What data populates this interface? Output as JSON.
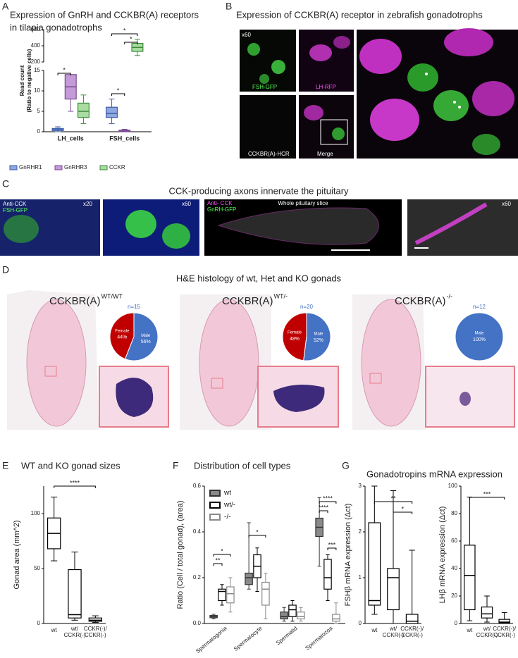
{
  "panel_labels": [
    "A",
    "B",
    "C",
    "D",
    "E",
    "F",
    "G"
  ],
  "panel_b": {
    "title": "Expression of CCKBR(A) receptor in zebrafish gonadotrophs",
    "image_labels": [
      "x60",
      "FSH-GFP",
      "LH-RFP",
      "CCKBR(A)-HCR",
      "Merge"
    ]
  },
  "panel_c": {
    "title": "CCK-producing axons innervate the pituitary",
    "image_labels": [
      "Anti-CCK",
      "FSH-GFP",
      "x20",
      "x60",
      "Anti- CCK",
      "GnRH-GFP",
      "Whole pituitary slice",
      "x60"
    ]
  },
  "panel_d": {
    "title": "H&E histology of wt, Het and KO gonads",
    "genotypes": [
      {
        "name": "CCKBR(A)",
        "superscript": "WT/WT"
      },
      {
        "name": "CCKBR(A)",
        "superscript": "WT/-"
      },
      {
        "name": "CCKBR(A)",
        "superscript": "-/-"
      }
    ]
  },
  "panel_g": {
    "title": "Gonadotropins mRNA expression"
  },
  "chart_data": [
    {
      "type": "box",
      "title": [
        "Expression of GnRH and CCKBR(A) receptors",
        "in tilapia gonadotrophs"
      ],
      "ylabel": [
        "Read count",
        "(Ratio to negative cells)"
      ],
      "categories": [
        "LH_cells",
        "FSH_cells"
      ],
      "ylim": [
        [
          0,
          15
        ],
        [
          200,
          600
        ]
      ],
      "yticks": [
        [
          0,
          5,
          10,
          15
        ],
        [
          200,
          400,
          600
        ]
      ],
      "series": [
        {
          "name": "GnRHR1",
          "color": "#3a5ba8",
          "fill": "#8fa8e0",
          "values": [
            [
              0,
              0.3,
              0.5,
              0.8,
              1.2
            ],
            [
              2,
              3.5,
              4.5,
              6,
              8
            ]
          ]
        },
        {
          "name": "GnRHR3",
          "color": "#7a4a90",
          "fill": "#c49ad8",
          "values": [
            [
              5,
              8,
              11,
              14,
              16
            ],
            [
              0,
              0,
              0.2,
              0.4,
              0.6
            ]
          ]
        },
        {
          "name": "CCKR",
          "color": "#3f8a3f",
          "fill": "#a8dca0",
          "values": [
            [
              2,
              3.5,
              5,
              7,
              9
            ],
            [
              280,
              330,
              380,
              430,
              480
            ]
          ]
        }
      ],
      "annotations": [
        "*",
        "*",
        "*",
        "*"
      ]
    },
    {
      "type": "pie",
      "title": "n=15",
      "categories": [
        "Female",
        "Male"
      ],
      "values": [
        44,
        56
      ],
      "value_labels": [
        "44%",
        "56%"
      ],
      "colors": [
        "#c00000",
        "#4472c4"
      ]
    },
    {
      "type": "pie",
      "title": "n=20",
      "categories": [
        "Female",
        "Male"
      ],
      "values": [
        48,
        52
      ],
      "value_labels": [
        "48%",
        "52%"
      ],
      "colors": [
        "#c00000",
        "#4472c4"
      ]
    },
    {
      "type": "pie",
      "title": "n=12",
      "categories": [
        "Male"
      ],
      "values": [
        100
      ],
      "value_labels": [
        "100%"
      ],
      "colors": [
        "#4472c4"
      ]
    },
    {
      "type": "box",
      "title": "WT and KO gonad sizes",
      "ylabel": "Gonad area (mm^2)",
      "categories": [
        "wt",
        "wt/\nCCKR(-)",
        "CCKR(-)/\nCCKR(-)"
      ],
      "ylim": [
        0,
        125
      ],
      "yticks": [
        0,
        50,
        100
      ],
      "color": "#000000",
      "fill": "#ffffff",
      "values": [
        [
          57,
          68,
          82,
          96,
          115
        ],
        [
          3,
          5,
          8,
          49,
          65
        ],
        [
          1,
          2,
          3,
          5,
          7
        ]
      ],
      "annotations": [
        "****"
      ]
    },
    {
      "type": "box",
      "title": "Distribution of cell types",
      "ylabel": "Ratio (Cell / total gonad), (area)",
      "categories": [
        "Spermatogonia",
        "Spermatocyte",
        "Spermatid",
        "Spermatozoa"
      ],
      "ylim": [
        0,
        0.6
      ],
      "yticks": [
        {
          "value": 0,
          "label": "0.0"
        },
        0.2,
        0.4,
        0.6
      ],
      "series": [
        {
          "name": "wt",
          "color": "#333333",
          "fill": "#8a8a8a",
          "values": [
            [
              0.02,
              0.025,
              0.03,
              0.035,
              0.04
            ],
            [
              0.15,
              0.17,
              0.2,
              0.22,
              0.44
            ],
            [
              0.01,
              0.02,
              0.03,
              0.05,
              0.07
            ],
            [
              0.25,
              0.38,
              0.42,
              0.46,
              0.55
            ]
          ]
        },
        {
          "name": "wt/-",
          "color": "#000000",
          "fill": "#ffffff",
          "values": [
            [
              0.08,
              0.1,
              0.14,
              0.15,
              0.17
            ],
            [
              0.14,
              0.2,
              0.25,
              0.3,
              0.33
            ],
            [
              0.01,
              0.03,
              0.06,
              0.08,
              0.1
            ],
            [
              0.1,
              0.15,
              0.2,
              0.28,
              0.3
            ]
          ]
        },
        {
          "name": "-/-",
          "color": "#8a8a8a",
          "fill": "#ffffff",
          "values": [
            [
              0.05,
              0.09,
              0.13,
              0.16,
              0.2
            ],
            [
              0.02,
              0.08,
              0.15,
              0.18,
              0.22
            ],
            [
              0.01,
              0.02,
              0.03,
              0.05,
              0.07
            ],
            [
              0,
              0.01,
              0.02,
              0.04,
              0.09
            ]
          ]
        }
      ],
      "annotations": [
        "**",
        "*",
        "*",
        "****",
        "****",
        "***"
      ]
    },
    {
      "type": "box",
      "ylabel": "FSHβ mRNA expression (Δct)",
      "categories": [
        "wt",
        "wt/\nCCKR(-)",
        "CCKR(-)/\nCCKR(-)"
      ],
      "ylim": [
        0,
        3
      ],
      "yticks": [
        0,
        1,
        2,
        3
      ],
      "color": "#000000",
      "fill": "#ffffff",
      "values": [
        [
          0.2,
          0.4,
          0.5,
          2.2,
          3
        ],
        [
          0,
          0.3,
          1,
          1.2,
          2.9
        ],
        [
          0,
          0,
          0.05,
          0.2,
          1.6
        ]
      ],
      "annotations": [
        "**",
        "*"
      ]
    },
    {
      "type": "box",
      "ylabel": "LHβ mRNA expression (Δct)",
      "categories": [
        "wt",
        "wt/\nCCKR(-)",
        "CCKR(-)/\nCCKR(-)"
      ],
      "ylim": [
        0,
        100
      ],
      "yticks": [
        0,
        20,
        40,
        60,
        80,
        100
      ],
      "color": "#000000",
      "fill": "#ffffff",
      "values": [
        [
          2,
          10,
          35,
          57,
          92
        ],
        [
          1,
          4,
          7,
          12,
          20
        ],
        [
          0,
          0.5,
          1,
          3,
          8
        ]
      ],
      "annotations": [
        "***"
      ]
    }
  ]
}
